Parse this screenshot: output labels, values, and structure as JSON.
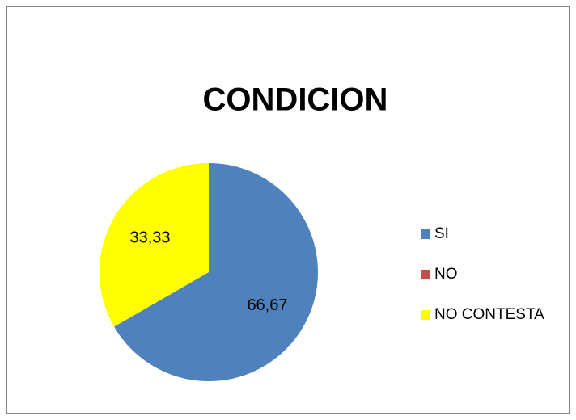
{
  "chart_data": {
    "type": "pie",
    "title": "CONDICION",
    "categories": [
      "SI",
      "NO",
      "NO CONTESTA"
    ],
    "values": [
      66.67,
      0,
      33.33
    ],
    "value_labels": [
      "66,67",
      null,
      "33,33"
    ],
    "colors": [
      "#4f81bd",
      "#c0504d",
      "#ffff00"
    ],
    "legend": "right"
  }
}
